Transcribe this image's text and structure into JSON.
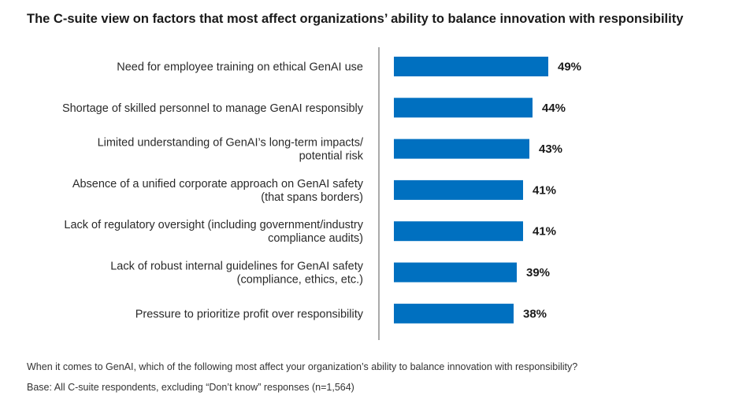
{
  "title": "The C-suite view on factors that most affect organizations’ ability to balance innovation with responsibility",
  "chart_data": {
    "type": "bar",
    "orientation": "horizontal",
    "categories": [
      [
        "Need for employee training on ethical GenAI use"
      ],
      [
        "Shortage of skilled personnel to manage GenAI responsibly"
      ],
      [
        "Limited understanding of GenAI’s long-term impacts/",
        "potential risk"
      ],
      [
        "Absence of a unified corporate approach on GenAI safety",
        "(that spans borders)"
      ],
      [
        "Lack of regulatory oversight (including government/industry",
        "compliance audits)"
      ],
      [
        "Lack of robust internal guidelines for GenAI safety",
        "(compliance, ethics, etc.)"
      ],
      [
        "Pressure to prioritize profit over responsibility"
      ]
    ],
    "values": [
      49,
      44,
      43,
      41,
      41,
      39,
      38
    ],
    "value_labels": [
      "49%",
      "44%",
      "43%",
      "41%",
      "41%",
      "39%",
      "38%"
    ],
    "bar_color": "#0070c0",
    "axis_color": "#555555",
    "grid": false,
    "legend": "none"
  },
  "footer": {
    "question": "When it comes to GenAI, which of the following most affect your organization’s ability to balance innovation with responsibility?",
    "base": "Base: All C-suite respondents, excluding “Don’t know” responses (n=1,564)"
  }
}
